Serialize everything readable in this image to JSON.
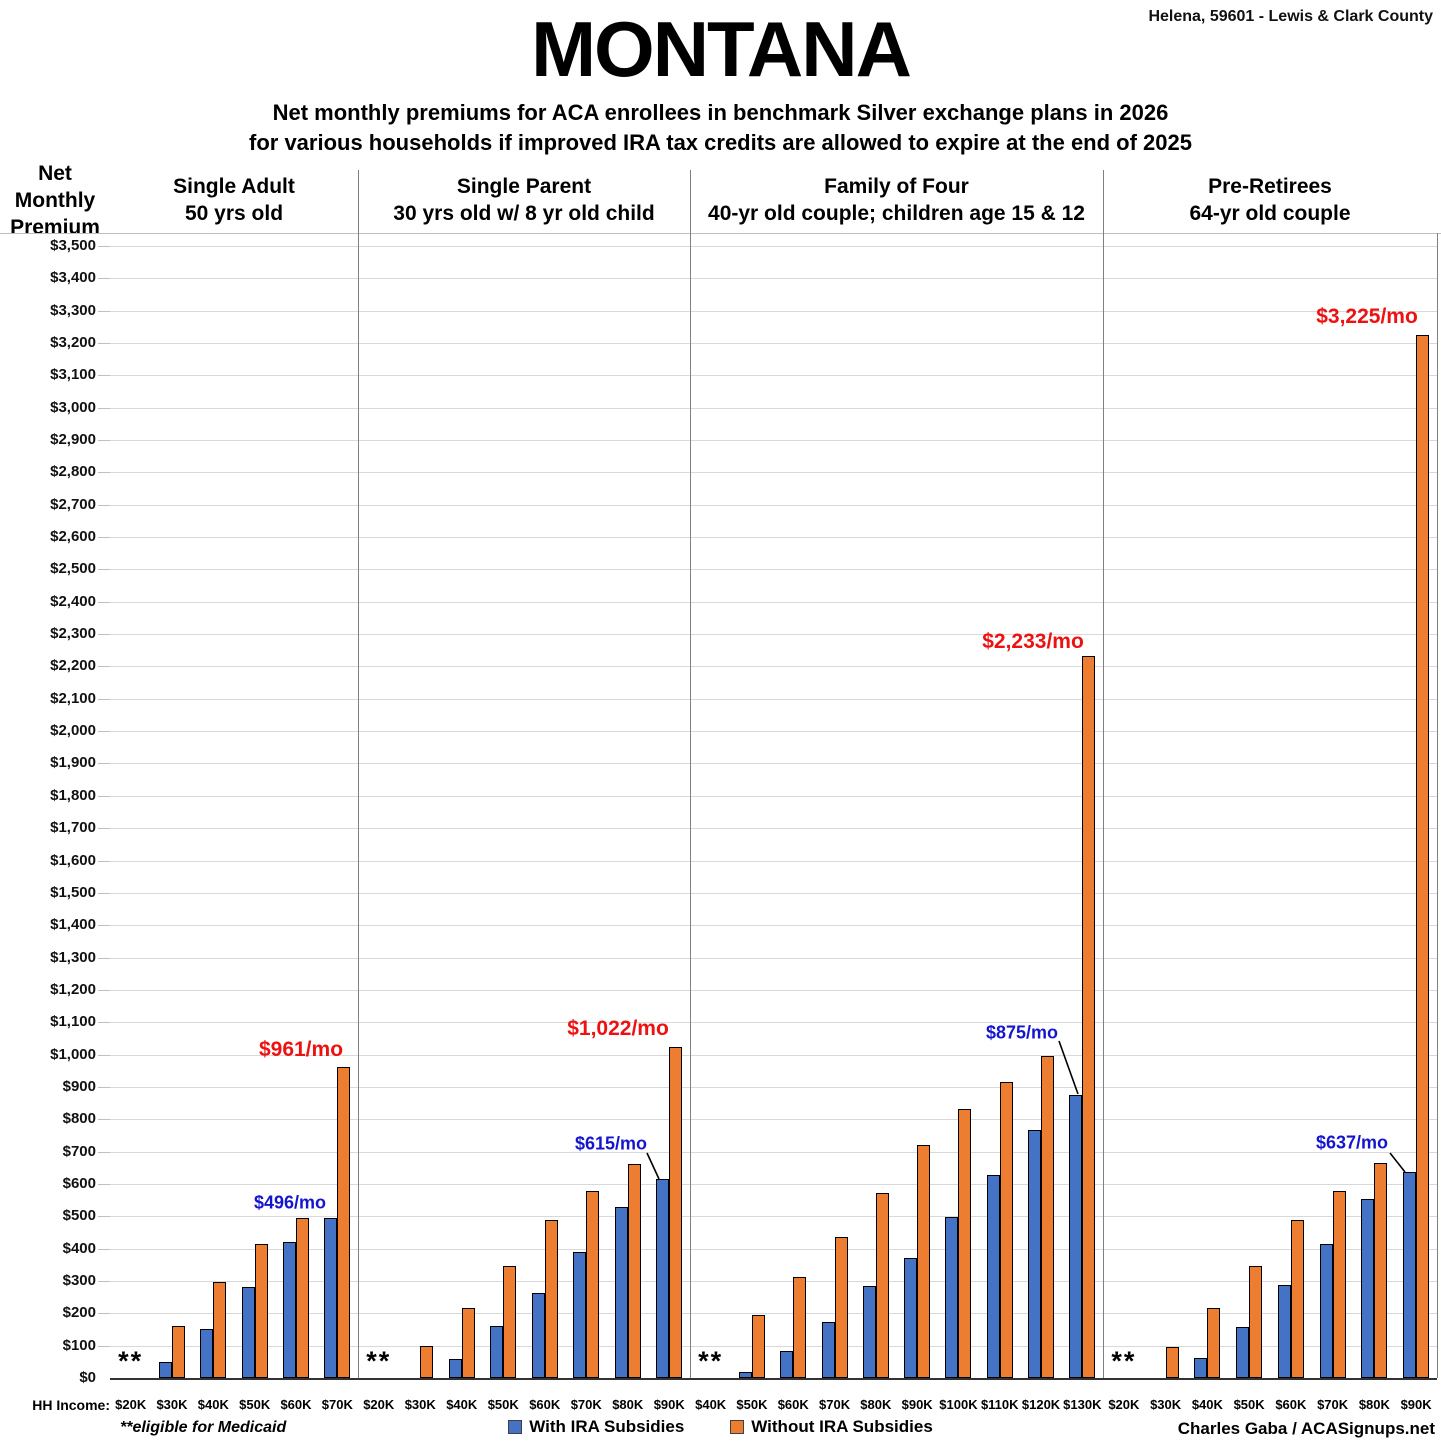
{
  "header": {
    "location": "Helena, 59601 - Lewis & Clark County",
    "title": "MONTANA",
    "subtitle_line1": "Net monthly premiums for ACA enrollees in benchmark Silver exchange plans in 2026",
    "subtitle_line2": "for various households if improved IRA tax credits are allowed to expire at the end of 2025",
    "y_axis_header": "Net Monthly Premium"
  },
  "chart_data": {
    "type": "bar",
    "title": "MONTANA",
    "subtitle": "Net monthly premiums for ACA enrollees in benchmark Silver exchange plans in 2026 for various households if improved IRA tax credits are allowed to expire at the end of 2025",
    "ylabel": "Net Monthly Premium",
    "y_axis": {
      "min": 0,
      "max": 3500,
      "step": 100,
      "prefix": "$"
    },
    "x_axis_label": "HH Income:",
    "grid": "horizontal",
    "legend_position": "bottom",
    "series_names": [
      "With IRA Subsidies",
      "Without IRA Subsidies"
    ],
    "medicaid_marker": "**",
    "panels": [
      {
        "title": "Single Adult",
        "subtitle": "50 yrs old",
        "categories": [
          "$20K",
          "$30K",
          "$40K",
          "$50K",
          "$60K",
          "$70K"
        ],
        "with_ira": [
          null,
          48,
          151,
          280,
          420,
          496
        ],
        "without_ira": [
          null,
          162,
          296,
          413,
          494,
          961
        ]
      },
      {
        "title": "Single Parent",
        "subtitle": "30 yrs old w/ 8 yr old child",
        "categories": [
          "$20K",
          "$30K",
          "$40K",
          "$50K",
          "$60K",
          "$70K",
          "$80K",
          "$90K"
        ],
        "with_ira": [
          null,
          0,
          59,
          160,
          263,
          389,
          530,
          615
        ],
        "without_ira": [
          null,
          98,
          216,
          345,
          490,
          578,
          663,
          1022
        ]
      },
      {
        "title": "Family of Four",
        "subtitle": "40-yr old couple; children age 15 & 12",
        "categories": [
          "$40K",
          "$50K",
          "$60K",
          "$70K",
          "$80K",
          "$90K",
          "$100K",
          "$110K",
          "$120K",
          "$130K"
        ],
        "with_ira": [
          null,
          20,
          85,
          174,
          283,
          371,
          497,
          628,
          767,
          875
        ],
        "without_ira": [
          null,
          196,
          311,
          437,
          573,
          720,
          833,
          916,
          995,
          2233
        ]
      },
      {
        "title": "Pre-Retirees",
        "subtitle": "64-yr old couple",
        "categories": [
          "$20K",
          "$30K",
          "$40K",
          "$50K",
          "$60K",
          "$70K",
          "$80K",
          "$90K"
        ],
        "with_ira": [
          null,
          0,
          61,
          157,
          287,
          414,
          553,
          637
        ],
        "without_ira": [
          null,
          97,
          215,
          345,
          490,
          578,
          665,
          3225
        ]
      }
    ],
    "annotations": [
      {
        "panel": 0,
        "category": "$70K",
        "series": "with_ira",
        "text": "$496/mo",
        "color": "blue",
        "leader": false
      },
      {
        "panel": 0,
        "category": "$70K",
        "series": "without_ira",
        "text": "$961/mo",
        "color": "red",
        "leader": false
      },
      {
        "panel": 1,
        "category": "$90K",
        "series": "with_ira",
        "text": "$615/mo",
        "color": "blue",
        "leader": true
      },
      {
        "panel": 1,
        "category": "$90K",
        "series": "without_ira",
        "text": "$1,022/mo",
        "color": "red",
        "leader": false
      },
      {
        "panel": 2,
        "category": "$130K",
        "series": "with_ira",
        "text": "$875/mo",
        "color": "blue",
        "leader": true
      },
      {
        "panel": 2,
        "category": "$130K",
        "series": "without_ira",
        "text": "$2,233/mo",
        "color": "red",
        "leader": false
      },
      {
        "panel": 3,
        "category": "$90K",
        "series": "with_ira",
        "text": "$637/mo",
        "color": "blue",
        "leader": true
      },
      {
        "panel": 3,
        "category": "$90K",
        "series": "without_ira",
        "text": "$3,225/mo",
        "color": "red",
        "leader": false
      }
    ]
  },
  "legend": {
    "with_label": "With IRA Subsidies",
    "without_label": "Without IRA Subsidies"
  },
  "footer": {
    "footnote": "**eligible for Medicaid",
    "credit": "Charles Gaba / ACASignups.net"
  },
  "colors": {
    "with_ira": "#4472C4",
    "without_ira": "#ED7D31",
    "annotation_red": "#EE1111",
    "annotation_blue": "#1515CE",
    "gridline": "#D9D9D9",
    "divider": "#808080",
    "axis": "#333333"
  }
}
